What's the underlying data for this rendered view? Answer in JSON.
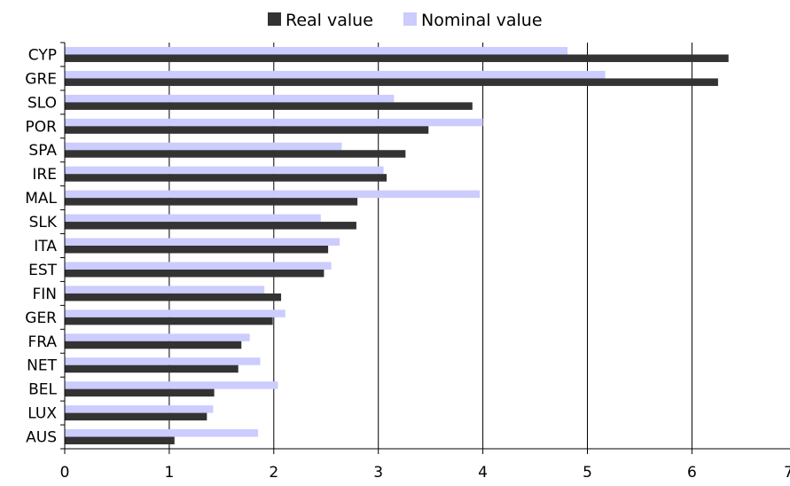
{
  "chart_data": {
    "type": "bar",
    "orientation": "horizontal",
    "categories": [
      "CYP",
      "GRE",
      "SLO",
      "POR",
      "SPA",
      "IRE",
      "MAL",
      "SLK",
      "ITA",
      "EST",
      "FIN",
      "GER",
      "FRA",
      "NET",
      "BEL",
      "LUX",
      "AUS"
    ],
    "series": [
      {
        "name": "Real value",
        "color": "#333333",
        "values": [
          6.35,
          6.25,
          3.9,
          3.48,
          3.26,
          3.08,
          2.8,
          2.79,
          2.52,
          2.48,
          2.07,
          1.99,
          1.69,
          1.66,
          1.43,
          1.36,
          1.05
        ]
      },
      {
        "name": "Nominal value",
        "color": "#ccccff",
        "values": [
          4.81,
          5.17,
          3.15,
          4.0,
          2.65,
          3.05,
          3.97,
          2.45,
          2.63,
          2.55,
          1.91,
          2.11,
          1.77,
          1.87,
          2.04,
          1.42,
          1.85
        ]
      }
    ],
    "xlim": [
      0,
      7
    ],
    "x_ticks": [
      0,
      1,
      2,
      3,
      4,
      5,
      6,
      7
    ],
    "gridlines": "vertical",
    "legend_position": "top-center",
    "title": "",
    "xlabel": "",
    "ylabel": ""
  }
}
